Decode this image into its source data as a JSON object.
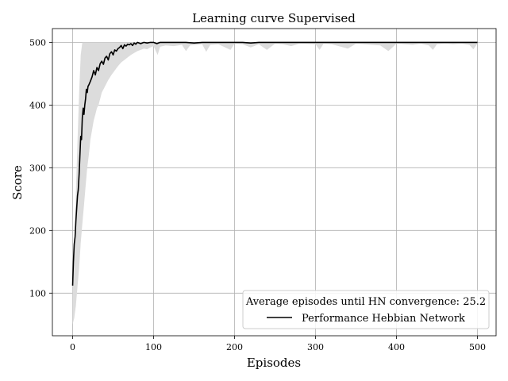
{
  "chart_data": {
    "type": "line",
    "title": "Learning curve Supervised",
    "xlabel": "Episodes",
    "ylabel": "Score",
    "xlim": [
      -25,
      523
    ],
    "ylim": [
      32,
      522
    ],
    "xticks": [
      0,
      100,
      200,
      300,
      400,
      500
    ],
    "yticks": [
      100,
      200,
      300,
      400,
      500
    ],
    "grid": true,
    "legend_position": "bottom-right",
    "legend_title": "Average episodes until HN convergence: 25.2",
    "series": [
      {
        "name": "Performance Hebbian Network",
        "color": "#000000",
        "points": [
          [
            0,
            112
          ],
          [
            1,
            150
          ],
          [
            2,
            178
          ],
          [
            3,
            190
          ],
          [
            4,
            215
          ],
          [
            5,
            235
          ],
          [
            6,
            255
          ],
          [
            7,
            265
          ],
          [
            8,
            290
          ],
          [
            9,
            320
          ],
          [
            10,
            350
          ],
          [
            11,
            345
          ],
          [
            12,
            380
          ],
          [
            13,
            395
          ],
          [
            14,
            385
          ],
          [
            15,
            400
          ],
          [
            16,
            410
          ],
          [
            17,
            425
          ],
          [
            18,
            420
          ],
          [
            19,
            430
          ],
          [
            20,
            432
          ],
          [
            22,
            438
          ],
          [
            24,
            445
          ],
          [
            26,
            455
          ],
          [
            28,
            448
          ],
          [
            30,
            460
          ],
          [
            32,
            455
          ],
          [
            34,
            466
          ],
          [
            36,
            470
          ],
          [
            38,
            465
          ],
          [
            40,
            475
          ],
          [
            42,
            478
          ],
          [
            44,
            472
          ],
          [
            46,
            482
          ],
          [
            48,
            485
          ],
          [
            50,
            480
          ],
          [
            52,
            488
          ],
          [
            54,
            486
          ],
          [
            56,
            490
          ],
          [
            58,
            492
          ],
          [
            60,
            495
          ],
          [
            62,
            490
          ],
          [
            64,
            496
          ],
          [
            66,
            494
          ],
          [
            68,
            497
          ],
          [
            70,
            496
          ],
          [
            72,
            498
          ],
          [
            74,
            495
          ],
          [
            76,
            499
          ],
          [
            78,
            497
          ],
          [
            80,
            500
          ],
          [
            84,
            498
          ],
          [
            88,
            500
          ],
          [
            92,
            499
          ],
          [
            96,
            500
          ],
          [
            100,
            500
          ],
          [
            104,
            498
          ],
          [
            108,
            500
          ],
          [
            112,
            500
          ],
          [
            120,
            500
          ],
          [
            130,
            500
          ],
          [
            140,
            500
          ],
          [
            150,
            499
          ],
          [
            160,
            500
          ],
          [
            170,
            500
          ],
          [
            180,
            500
          ],
          [
            190,
            500
          ],
          [
            200,
            500
          ],
          [
            210,
            500
          ],
          [
            220,
            499
          ],
          [
            230,
            500
          ],
          [
            240,
            500
          ],
          [
            250,
            500
          ],
          [
            260,
            500
          ],
          [
            270,
            500
          ],
          [
            280,
            500
          ],
          [
            290,
            500
          ],
          [
            300,
            500
          ],
          [
            320,
            500
          ],
          [
            340,
            500
          ],
          [
            360,
            500
          ],
          [
            380,
            500
          ],
          [
            400,
            500
          ],
          [
            420,
            500
          ],
          [
            440,
            500
          ],
          [
            460,
            500
          ],
          [
            480,
            500
          ],
          [
            500,
            500
          ]
        ]
      }
    ],
    "band": {
      "color": "#dcdcdc",
      "upper": [
        [
          0,
          112
        ],
        [
          2,
          170
        ],
        [
          4,
          260
        ],
        [
          6,
          340
        ],
        [
          8,
          420
        ],
        [
          10,
          480
        ],
        [
          12,
          500
        ],
        [
          16,
          500
        ],
        [
          20,
          500
        ],
        [
          30,
          500
        ],
        [
          40,
          500
        ],
        [
          60,
          500
        ],
        [
          80,
          500
        ],
        [
          100,
          500
        ],
        [
          150,
          500
        ],
        [
          200,
          500
        ],
        [
          250,
          500
        ],
        [
          300,
          500
        ],
        [
          350,
          500
        ],
        [
          400,
          500
        ],
        [
          450,
          500
        ],
        [
          500,
          500
        ]
      ],
      "lower": [
        [
          0,
          50
        ],
        [
          2,
          60
        ],
        [
          4,
          80
        ],
        [
          6,
          110
        ],
        [
          8,
          140
        ],
        [
          10,
          180
        ],
        [
          12,
          210
        ],
        [
          14,
          240
        ],
        [
          16,
          270
        ],
        [
          18,
          300
        ],
        [
          20,
          320
        ],
        [
          22,
          345
        ],
        [
          24,
          360
        ],
        [
          26,
          375
        ],
        [
          28,
          385
        ],
        [
          30,
          395
        ],
        [
          32,
          400
        ],
        [
          34,
          410
        ],
        [
          36,
          420
        ],
        [
          38,
          425
        ],
        [
          40,
          430
        ],
        [
          44,
          440
        ],
        [
          48,
          448
        ],
        [
          52,
          455
        ],
        [
          56,
          462
        ],
        [
          60,
          468
        ],
        [
          64,
          472
        ],
        [
          68,
          476
        ],
        [
          72,
          480
        ],
        [
          76,
          483
        ],
        [
          80,
          486
        ],
        [
          84,
          488
        ],
        [
          88,
          490
        ],
        [
          92,
          489
        ],
        [
          96,
          492
        ],
        [
          100,
          494
        ],
        [
          105,
          480
        ],
        [
          108,
          493
        ],
        [
          115,
          495
        ],
        [
          125,
          494
        ],
        [
          135,
          496
        ],
        [
          140,
          486
        ],
        [
          145,
          495
        ],
        [
          160,
          497
        ],
        [
          165,
          485
        ],
        [
          170,
          496
        ],
        [
          180,
          497
        ],
        [
          195,
          488
        ],
        [
          200,
          498
        ],
        [
          210,
          497
        ],
        [
          220,
          492
        ],
        [
          230,
          497
        ],
        [
          240,
          488
        ],
        [
          250,
          498
        ],
        [
          260,
          497
        ],
        [
          270,
          494
        ],
        [
          280,
          498
        ],
        [
          300,
          497
        ],
        [
          305,
          488
        ],
        [
          310,
          498
        ],
        [
          320,
          497
        ],
        [
          340,
          490
        ],
        [
          350,
          498
        ],
        [
          360,
          497
        ],
        [
          380,
          495
        ],
        [
          390,
          486
        ],
        [
          400,
          498
        ],
        [
          410,
          497
        ],
        [
          420,
          496
        ],
        [
          430,
          498
        ],
        [
          440,
          495
        ],
        [
          445,
          488
        ],
        [
          450,
          497
        ],
        [
          460,
          498
        ],
        [
          470,
          497
        ],
        [
          480,
          498
        ],
        [
          490,
          496
        ],
        [
          495,
          489
        ],
        [
          500,
          498
        ]
      ]
    }
  }
}
